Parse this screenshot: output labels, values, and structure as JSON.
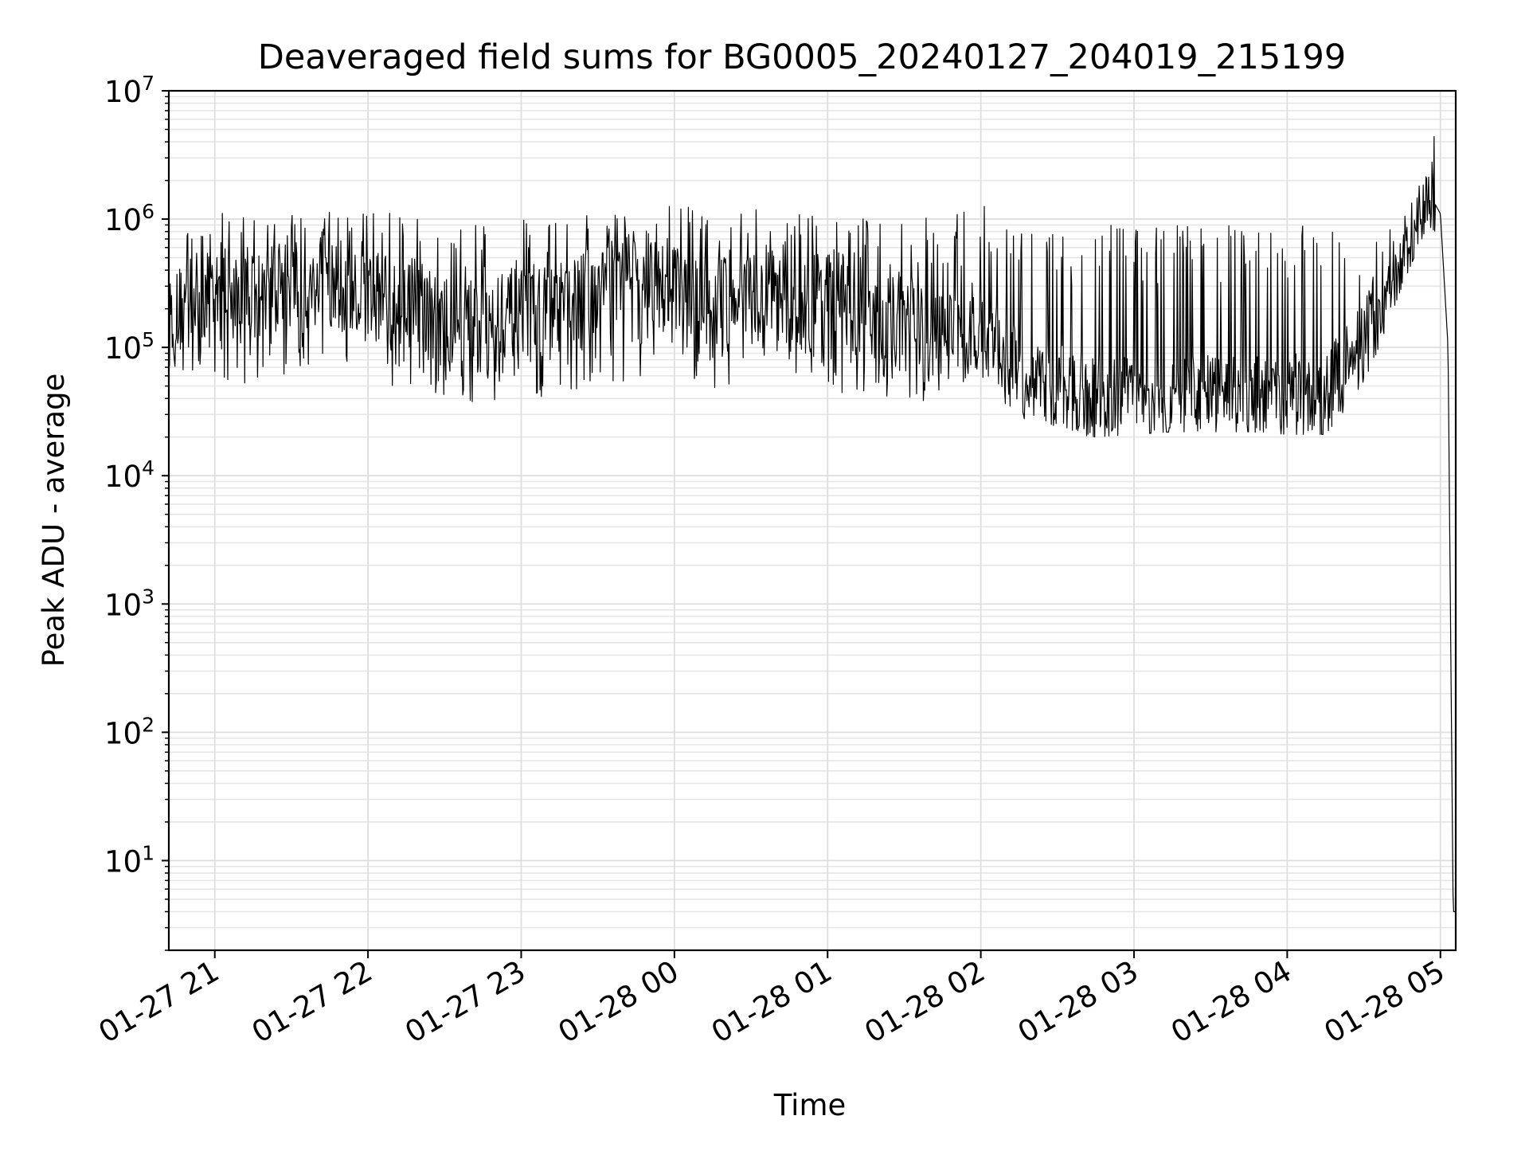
{
  "chart_data": {
    "type": "line",
    "title": "Deaveraged field sums for BG0005_20240127_204019_215199",
    "xlabel": "Time",
    "ylabel": "Peak ADU - average",
    "yscale": "log",
    "ylim": [
      2,
      10000000
    ],
    "xlim": [
      "2024-01-27 20:42",
      "2024-01-28 05:06"
    ],
    "grid": true,
    "x_ticks": [
      "2024-01-27 21:00",
      "2024-01-27 22:00",
      "2024-01-27 23:00",
      "2024-01-28 00:00",
      "2024-01-28 01:00",
      "2024-01-28 02:00",
      "2024-01-28 03:00",
      "2024-01-28 04:00",
      "2024-01-28 05:00"
    ],
    "x_tick_labels": [
      "01-27 21",
      "01-27 22",
      "01-27 23",
      "01-28 00",
      "01-28 01",
      "01-28 02",
      "01-28 03",
      "01-28 04",
      "01-28 05"
    ],
    "y_ticks": [
      {
        "value": 10,
        "base": "10",
        "exp": "1"
      },
      {
        "value": 100,
        "base": "10",
        "exp": "2"
      },
      {
        "value": 1000,
        "base": "10",
        "exp": "3"
      },
      {
        "value": 10000,
        "base": "10",
        "exp": "4"
      },
      {
        "value": 100000,
        "base": "10",
        "exp": "5"
      },
      {
        "value": 1000000,
        "base": "10",
        "exp": "6"
      },
      {
        "value": 10000000,
        "base": "10",
        "exp": "7"
      }
    ],
    "series": [
      {
        "color": "#000000",
        "x": [
          "2024-01-27 20:42",
          "2024-01-27 20:50",
          "2024-01-27 21:00",
          "2024-01-27 21:15",
          "2024-01-27 21:30",
          "2024-01-27 21:45",
          "2024-01-27 22:00",
          "2024-01-27 22:15",
          "2024-01-27 22:30",
          "2024-01-27 22:45",
          "2024-01-27 23:00",
          "2024-01-27 23:15",
          "2024-01-27 23:30",
          "2024-01-27 23:45",
          "2024-01-28 00:00",
          "2024-01-28 00:15",
          "2024-01-28 00:30",
          "2024-01-28 00:45",
          "2024-01-28 01:00",
          "2024-01-28 01:15",
          "2024-01-28 01:30",
          "2024-01-28 01:45",
          "2024-01-28 02:00",
          "2024-01-28 02:15",
          "2024-01-28 02:30",
          "2024-01-28 02:45",
          "2024-01-28 03:00",
          "2024-01-28 03:15",
          "2024-01-28 03:30",
          "2024-01-28 03:45",
          "2024-01-28 04:00",
          "2024-01-28 04:15",
          "2024-01-28 04:30",
          "2024-01-28 04:45",
          "2024-01-28 04:55",
          "2024-01-28 04:58",
          "2024-01-28 05:00",
          "2024-01-28 05:03",
          "2024-01-28 05:05",
          "2024-01-28 05:06"
        ],
        "values": [
          150000,
          250000,
          250000,
          260000,
          300000,
          300000,
          250000,
          280000,
          150000,
          200000,
          180000,
          200000,
          300000,
          450000,
          250000,
          200000,
          300000,
          200000,
          300000,
          150000,
          180000,
          120000,
          150000,
          60000,
          50000,
          40000,
          40000,
          40000,
          40000,
          40000,
          40000,
          40000,
          120000,
          400000,
          1200000,
          1300000,
          1100000,
          100000,
          4,
          4
        ],
        "spike_envelope": {
          "high": [
            800000,
            1100000,
            1200000,
            1000000,
            1200000,
            1200000,
            1300000,
            1100000,
            1000000,
            900000,
            1000000,
            1000000,
            1100000,
            1100000,
            1300000,
            1200000,
            1200000,
            1100000,
            1100000,
            1000000,
            1000000,
            1100000,
            1300000,
            1000000,
            800000,
            900000,
            900000,
            900000,
            900000,
            900000,
            900000,
            900000,
            700000,
            1000000,
            2500000,
            5500000,
            1300000,
            100000,
            4,
            4
          ],
          "low": [
            60000,
            50000,
            45000,
            55000,
            50000,
            60000,
            60000,
            45000,
            30000,
            35000,
            40000,
            40000,
            50000,
            50000,
            50000,
            45000,
            50000,
            45000,
            45000,
            40000,
            35000,
            40000,
            40000,
            28000,
            22000,
            20000,
            21000,
            22000,
            22000,
            22000,
            21000,
            21000,
            50000,
            300000,
            900000,
            800000,
            900000,
            100000,
            4,
            4
          ]
        }
      }
    ]
  }
}
